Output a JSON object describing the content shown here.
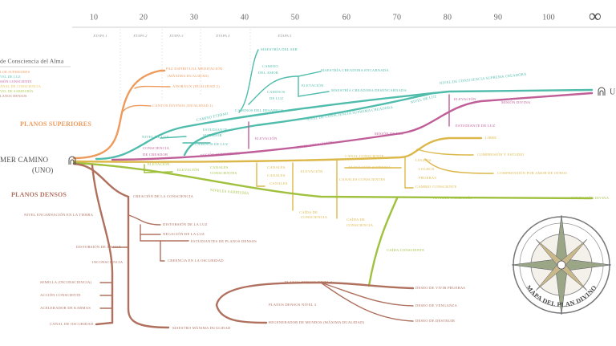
{
  "axis": {
    "ticks": [
      "10",
      "20",
      "30",
      "40",
      "50",
      "60",
      "70",
      "80",
      "90",
      "100",
      "∞"
    ],
    "stages": [
      "ETAPA 1",
      "ETAPA 2",
      "ETAPA 3",
      "ETAPA 4",
      "ETAPA 5"
    ]
  },
  "legend": {
    "title": "de Consciencia del Alma",
    "items": [
      {
        "text": "LOR SUPERIORES",
        "color": "#ee9a5c"
      },
      {
        "text": "VEL DE LUZ",
        "color": "#5cc3b3"
      },
      {
        "text": "SIÓN CONSCIENTE",
        "color": "#c1609c"
      },
      {
        "text": "ANAL DE CONSCIENCIA",
        "color": "#e6c35a"
      },
      {
        "text": "VEL DE SABIDURÍA",
        "color": "#a9c84a"
      },
      {
        "text": "LANOS DENSOS",
        "color": "#b07865"
      }
    ]
  },
  "branches": [
    {
      "color": "#ee9a5c",
      "labels": [
        "PAZ ESPIRITUAL MEDITACIÓN",
        "(MÁXIMA DUALIDAD)",
        "ANORAUX (DUALIDAD 2)",
        "CANTOS DIVINOS (DUALIDAD 1)",
        "PLANOS SUPERIORES"
      ]
    },
    {
      "color": "#4fbcac",
      "labels": [
        "MAESTRÍA DEL SER",
        "CAMINO",
        "DEL AMOR",
        "MAESTRÍA CREADORA ENCARNADA",
        "ELEVACIÓN",
        "CAMINOS",
        "DE LUZ",
        "MAESTRÍA CREADORA DESENCARNADA",
        "CAMINO ETERNO",
        "CAMINOS DEL DESAPEGO",
        "NIVEL DE CONSCIENCIA SUPREMA CREADORA",
        "NIVEL DE LUZ",
        "NIVEL DE CONSCIENCIA SUPREMA CREADORA",
        "NIVEL DE LUZ",
        "ESTUDIANTE",
        "SUPERIOR",
        "CAMINOS DE LUZ"
      ]
    },
    {
      "color": "#bf5e98",
      "labels": [
        "CONSCIENCIA",
        "DE CREADOR",
        "MISIÓN CONSCIENTE",
        "ELEVACIÓN",
        "NIVEL CONSCIENTE",
        "MISIÓN DE LUZ",
        "ESTUDIANTE DE LUZ",
        "ELEVACIÓN",
        "MISIÓN DIVINA"
      ]
    },
    {
      "color": "#dcb84a",
      "labels": [
        "CANAL CONSCIENTE",
        "LIBRE",
        "COMPRESIÓN Y ESTUDIO",
        "LOGROS",
        "ELEVACIÓN SUPREMA",
        "LOGROS",
        "COMPRENSIÓN POR AMOR DE OTROS",
        "CANALES",
        "CANALES",
        "CANALES",
        "ELEVACIÓN",
        "CANALES CONSCIENTES",
        "PRUEBAS",
        "CAMBIO CONSCIENTE",
        "CAÍDA DE",
        "CONSCIENCIA",
        "CAÍDA DE",
        "CONSCIENCIA"
      ]
    },
    {
      "color": "#9fc13e",
      "labels": [
        "ELEVACIÓN",
        "ELEVACIÓN",
        "CANALES",
        "CONSCIENTES",
        "NIVELES SABIDURÍA",
        "NIVELES SABIDURÍA",
        "COMPASIÓN DIVINA",
        "CAÍDA CONSCIENTE"
      ]
    },
    {
      "color": "#b0705e",
      "labels": [
        "PLANOS DENSOS",
        "CREACIÓN DE LA CONSCIENCIA",
        "NIVEL ENCARNACIÓN EN LA TIERRA",
        "DISTORSIÓN DE LA LUZ",
        "NEGACIÓN DE LA LUZ",
        "ESTUDIANTES DE PLANOS DENSOS",
        "DISTORSIÓN DE LA LUZ",
        "INCONSCIENCIA",
        "CREENCIA EN LA OSCURIDAD",
        "SEMILLA (INCONSCIENCIA)",
        "PLANOS DENSOS NIVEL 2",
        "DESEO DE VIVIR PRUEBAS",
        "ACCIÓN CONSCIENTE",
        "ACELERADOR DE KARMAS",
        "PLANOS DENSOS NIVEL 3",
        "DESEO DE VENGANZA",
        "DESEO DE DESTRUIR",
        "REGENERADOR DE MUNDOS (MÁXIMA DUALIDAD)",
        "CANAL DE OSCURIDAD",
        "MAESTRO MÁXIMA DUALIDAD"
      ]
    },
    {
      "color": "#4a4a4a",
      "labels": [
        "MER CAMINO",
        "(UNO)",
        "U"
      ]
    }
  ],
  "compass": {
    "title": "MAPA DEL PLAN DIVINO"
  }
}
